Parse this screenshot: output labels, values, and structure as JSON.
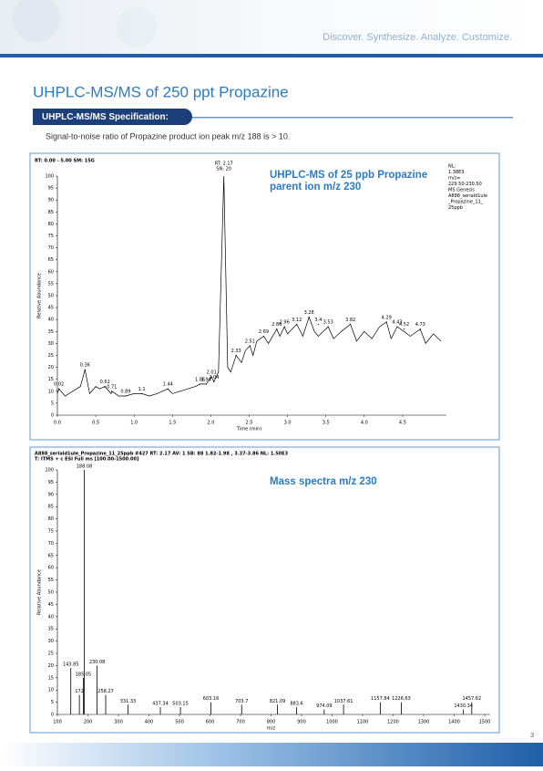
{
  "header": {
    "tagline": "Discover. Synthesize. Analyze. Customize."
  },
  "title": "UHPLC-MS/MS of 250 ppt Propazine",
  "section": {
    "label": "UHPLC-MS/MS Specification:",
    "text": "Signal-to-noise ratio of Propazine product ion peak m/z 188 is > 10."
  },
  "page_number": 3,
  "chart_data": [
    {
      "type": "line",
      "info": "RT: 0.00 - 5.00  SM: 15G",
      "annotation": [
        "UHPLC-MS of 25 ppb Propazine",
        "parent ion m/z 230"
      ],
      "info_right": [
        "NL:",
        "1.38E3",
        "m/z=",
        "229.50-230.50",
        "MS Genesis",
        "A888_seriald1ule",
        "_Propazine_11_",
        "25ppb"
      ],
      "rt_label": "RT: 2.17",
      "sn_label": "SN: 20",
      "xlabel": "Time (min)",
      "ylabel": "Relative Abundance",
      "color": "#000000",
      "x": [
        0.0,
        0.02,
        0.1,
        0.2,
        0.3,
        0.36,
        0.42,
        0.5,
        0.55,
        0.62,
        0.7,
        0.71,
        0.8,
        0.89,
        1.0,
        1.1,
        1.2,
        1.3,
        1.44,
        1.5,
        1.6,
        1.7,
        1.8,
        1.86,
        1.94,
        2.01,
        2.04,
        2.1,
        2.17,
        2.22,
        2.26,
        2.33,
        2.4,
        2.45,
        2.51,
        2.55,
        2.6,
        2.69,
        2.75,
        2.86,
        2.9,
        2.96,
        3.0,
        3.12,
        3.2,
        3.28,
        3.35,
        3.4,
        3.53,
        3.6,
        3.7,
        3.82,
        3.9,
        4.0,
        4.1,
        4.2,
        4.29,
        4.35,
        4.43,
        4.52,
        4.6,
        4.73,
        4.8,
        4.9,
        5.0
      ],
      "values": [
        9,
        11,
        8,
        10,
        12,
        19,
        9,
        12,
        11,
        12,
        9,
        10,
        8,
        8,
        9,
        9,
        8,
        9,
        11,
        9,
        10,
        11,
        12,
        13,
        13,
        16,
        14,
        18,
        100,
        20,
        18,
        25,
        22,
        27,
        29,
        25,
        31,
        33,
        30,
        36,
        33,
        37,
        34,
        38,
        33,
        41,
        35,
        33,
        37,
        32,
        35,
        38,
        31,
        35,
        32,
        37,
        39,
        32,
        37,
        35,
        33,
        36,
        30,
        34,
        31
      ],
      "peaks": {
        "x": [
          0.02,
          0.36,
          0.62,
          0.71,
          0.89,
          1.1,
          1.44,
          1.86,
          1.94,
          2.01,
          2.04,
          2.33,
          2.51,
          2.69,
          2.86,
          2.96,
          3.12,
          3.28,
          3.4,
          3.53,
          3.82,
          4.29,
          4.43,
          4.52,
          4.73
        ],
        "y": [
          11,
          19,
          12,
          10,
          8,
          9,
          11,
          13,
          13,
          16,
          14,
          25,
          29,
          33,
          36,
          37,
          38,
          41,
          38,
          37,
          38,
          39,
          37,
          36,
          36
        ]
      },
      "xlim": [
        0,
        5
      ],
      "ylim": [
        0,
        100
      ],
      "xticks": [
        {
          "value": 0,
          "label": "0.0"
        },
        0.5,
        {
          "value": 1,
          "label": "1.0"
        },
        1.5,
        {
          "value": 2,
          "label": "2.0"
        },
        2.5,
        {
          "value": 3,
          "label": "3.0"
        },
        3.5,
        {
          "value": 4,
          "label": "4.0"
        },
        4.5
      ],
      "yticks": [
        0,
        5,
        10,
        15,
        20,
        25,
        30,
        35,
        40,
        45,
        50,
        55,
        60,
        65,
        70,
        75,
        80,
        85,
        90,
        95,
        100
      ]
    },
    {
      "type": "bar",
      "info": "A888_seriald1ule_Propazine_11_25ppb #427  RT: 2.17  AV: 1  SB: 88  1.82-1.98 , 3.37-3.86  NL: 1.50E3",
      "info2": "T: ITMS + c ESI Full ms [100.00-1500.00]",
      "annotation": "Mass spectra m/z 230",
      "xlabel": "m/z",
      "ylabel": "Relative Abundance",
      "color": "#000000",
      "x": [
        143.85,
        172.0,
        185.05,
        188.08,
        230.08,
        258.27,
        331.33,
        437.34,
        503.15,
        603.16,
        703.7,
        821.09,
        883.6,
        974.09,
        1037.61,
        1157.84,
        1226.63,
        1430.34,
        1457.62
      ],
      "values": [
        19,
        8,
        15,
        100,
        20,
        8,
        4,
        3,
        3,
        5,
        4,
        4,
        3,
        2,
        4,
        5,
        5,
        2,
        5
      ],
      "xlim": [
        100,
        1500
      ],
      "ylim": [
        0,
        100
      ],
      "xticks": [
        100,
        200,
        300,
        400,
        500,
        600,
        700,
        800,
        900,
        1000,
        1100,
        1200,
        1300,
        1400,
        1500
      ],
      "yticks": [
        0,
        5,
        10,
        15,
        20,
        25,
        30,
        35,
        40,
        45,
        50,
        55,
        60,
        65,
        70,
        75,
        80,
        85,
        90,
        95,
        100
      ]
    }
  ]
}
